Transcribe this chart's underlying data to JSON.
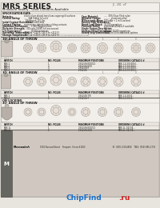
{
  "bg_color": "#e8e4de",
  "body_color": "#f2eeea",
  "title": "MRS SERIES",
  "subtitle": "Miniature Rotary - Gold Contacts Available",
  "part_number": "JS-201c/F",
  "spec_title": "SPECIFICATION DATA",
  "section1_label": "30° ANGLE OF THROW",
  "section2_label": "30° ANGLE OF THROW",
  "section3a_label": "ON LOCKING",
  "section3b_label": "30° ANGLE OF THROW",
  "table_headers": [
    "SWITCH",
    "NO. POLES",
    "MAXIMUM POSITIONS",
    "ORDERING CATALOG #"
  ],
  "hx": [
    5,
    60,
    98,
    148
  ],
  "rows_section1": [
    [
      "MRS-1",
      "1",
      "2/3/4/5/6/8/10/12",
      "MRS-1-1/2/3/4/5/6..."
    ],
    [
      "MRS-2",
      "2",
      "2/3/4/5/6/8/10",
      "MRS-2-1/2/3/4/5/6..."
    ],
    [
      "MRS-3",
      "3",
      "2/3/4/5/6/8",
      "MRS-3-1/2/3/4/5/6..."
    ],
    [
      "MRS-4",
      "4",
      "2/3/4/5/6",
      "MRS-4-1/2/3/4/5/6..."
    ]
  ],
  "rows_section2": [
    [
      "MRS-1",
      "1",
      "2/3/4/5/6/7/8",
      "MRS-1-1/2/3/4..."
    ],
    [
      "MRS-2",
      "2",
      "2/3/4/5/6/7",
      "MRS-2-1/2/3/4..."
    ]
  ],
  "rows_section3": [
    [
      "MRS-1L",
      "1",
      "2/3/4/5/6/8/10/12",
      "MRS-1L-1/2/3/4..."
    ],
    [
      "MRS-2L",
      "2",
      "2/3/4/5/6/8/10",
      "MRS-2L-1/2/3/4..."
    ]
  ],
  "footer_logo_bg": "#888888",
  "footer_text_color": "#111111",
  "chipfind_chip_color": "#1a6fcc",
  "chipfind_find_color": "#cc2222",
  "line_color": "#999990",
  "dark_line_color": "#555550",
  "text_color": "#1a1a18",
  "gray_text": "#555550"
}
